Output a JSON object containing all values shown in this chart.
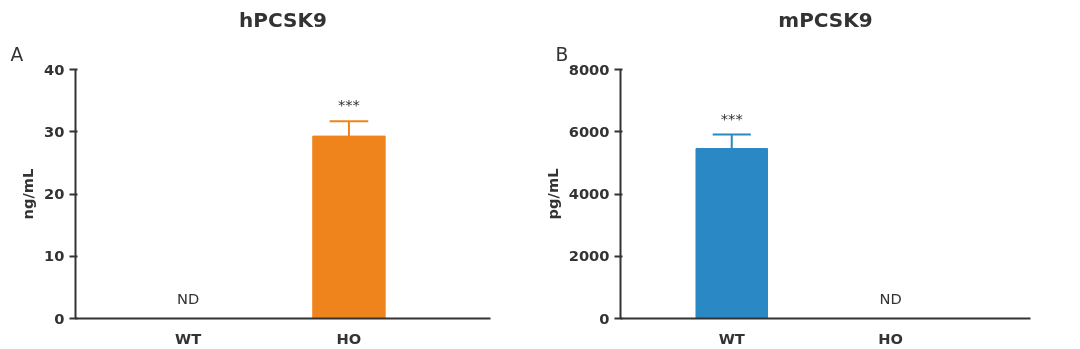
{
  "chart_data": [
    {
      "type": "bar",
      "title": "hPCSK9",
      "ylabel": "ng/mL",
      "categories": [
        "WT",
        "HO"
      ],
      "values": [
        null,
        29.3
      ],
      "errors": [
        null,
        2.4
      ],
      "colors": [
        "#f0841c",
        "#f0841c"
      ],
      "ylim": [
        0,
        40
      ],
      "yticks": [
        0,
        10,
        20,
        30,
        40
      ],
      "grid": false,
      "annotations": [
        "A",
        "ND",
        {
          "text": "***",
          "x": "HO",
          "y": 31.7
        }
      ]
    },
    {
      "type": "bar",
      "title": "mPCSK9",
      "ylabel": "pg/mL",
      "categories": [
        "WT",
        "HO"
      ],
      "values": [
        5460,
        null
      ],
      "errors": [
        450,
        null
      ],
      "colors": [
        "#2a88c4",
        "#2a88c4"
      ],
      "ylim": [
        0,
        8000
      ],
      "yticks": [
        0,
        2000,
        4000,
        6000,
        8000
      ],
      "grid": false,
      "annotations": [
        "B",
        {
          "text": "***",
          "x": "WT",
          "y": 5910
        },
        "ND"
      ]
    }
  ]
}
